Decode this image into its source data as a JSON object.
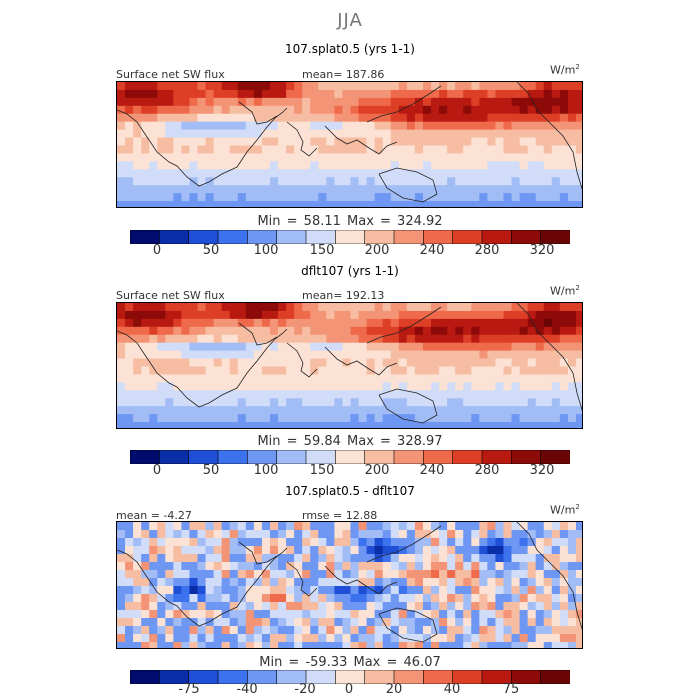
{
  "season": "JJA",
  "units_base": "W/m",
  "units_exp": "2",
  "colors": {
    "abs_scale": [
      "#000b6e",
      "#0a2ea8",
      "#1f4fd6",
      "#3d72ee",
      "#6e96f3",
      "#a2bdf6",
      "#d0dcf8",
      "#fbe2d4",
      "#f7bda3",
      "#f49476",
      "#ef6a4a",
      "#dd3f26",
      "#b81a12",
      "#8c0a08",
      "#6a0505"
    ],
    "diff_scale": [
      "#000b6e",
      "#0a2ea8",
      "#1f4fd6",
      "#3d72ee",
      "#6e96f3",
      "#a2bdf6",
      "#d0dcf8",
      "#fbe2d4",
      "#f7bda3",
      "#f49476",
      "#ef6a4a",
      "#dd3f26",
      "#b81a12",
      "#8c0a08",
      "#6a0505"
    ],
    "land": "#222222"
  },
  "panels": [
    {
      "title": "107.splat0.5 (yrs 1-1)",
      "left_label": "Surface net SW flux",
      "center_label": "mean= 187.86",
      "minmax": "Min =  58.11 Max =  324.92",
      "cbar_ticks": [
        "0",
        "50",
        "100",
        "150",
        "200",
        "240",
        "280",
        "320"
      ]
    },
    {
      "title": "dflt107 (yrs 1-1)",
      "left_label": "Surface net SW flux",
      "center_label": "mean= 192.13",
      "minmax": "Min =  59.84 Max =  328.97",
      "cbar_ticks": [
        "0",
        "50",
        "100",
        "150",
        "200",
        "240",
        "280",
        "320"
      ]
    },
    {
      "title": "107.splat0.5 - dflt107",
      "left_label": "mean =  -4.27",
      "center_label": "rmse =  12.88",
      "minmax": "Min = -59.33 Max =  46.07",
      "cbar_ticks": [
        "-75",
        "-40",
        "-20",
        "0",
        "20",
        "40",
        "75"
      ]
    }
  ],
  "chart_data": [
    {
      "type": "heatmap",
      "title": "107.splat0.5 (yrs 1-1)",
      "variable": "Surface net SW flux",
      "units": "W/m2",
      "mean": 187.86,
      "min": 58.11,
      "max": 324.92,
      "colorbar_levels": [
        0,
        25,
        50,
        75,
        100,
        125,
        150,
        175,
        200,
        220,
        240,
        260,
        280,
        300,
        320
      ],
      "colorbar_tick_labels": [
        "0",
        "50",
        "100",
        "150",
        "200",
        "240",
        "280",
        "320"
      ]
    },
    {
      "type": "heatmap",
      "title": "dflt107 (yrs 1-1)",
      "variable": "Surface net SW flux",
      "units": "W/m2",
      "mean": 192.13,
      "min": 59.84,
      "max": 328.97,
      "colorbar_levels": [
        0,
        25,
        50,
        75,
        100,
        125,
        150,
        175,
        200,
        220,
        240,
        260,
        280,
        300,
        320
      ],
      "colorbar_tick_labels": [
        "0",
        "50",
        "100",
        "150",
        "200",
        "240",
        "280",
        "320"
      ]
    },
    {
      "type": "heatmap",
      "title": "107.splat0.5 - dflt107",
      "units": "W/m2",
      "mean": -4.27,
      "rmse": 12.88,
      "min": -59.33,
      "max": 46.07,
      "colorbar_levels": [
        -75,
        -60,
        -40,
        -30,
        -20,
        -10,
        -5,
        0,
        5,
        10,
        20,
        30,
        40,
        60,
        75
      ],
      "colorbar_tick_labels": [
        "-75",
        "-40",
        "-20",
        "0",
        "20",
        "40",
        "75"
      ]
    }
  ]
}
